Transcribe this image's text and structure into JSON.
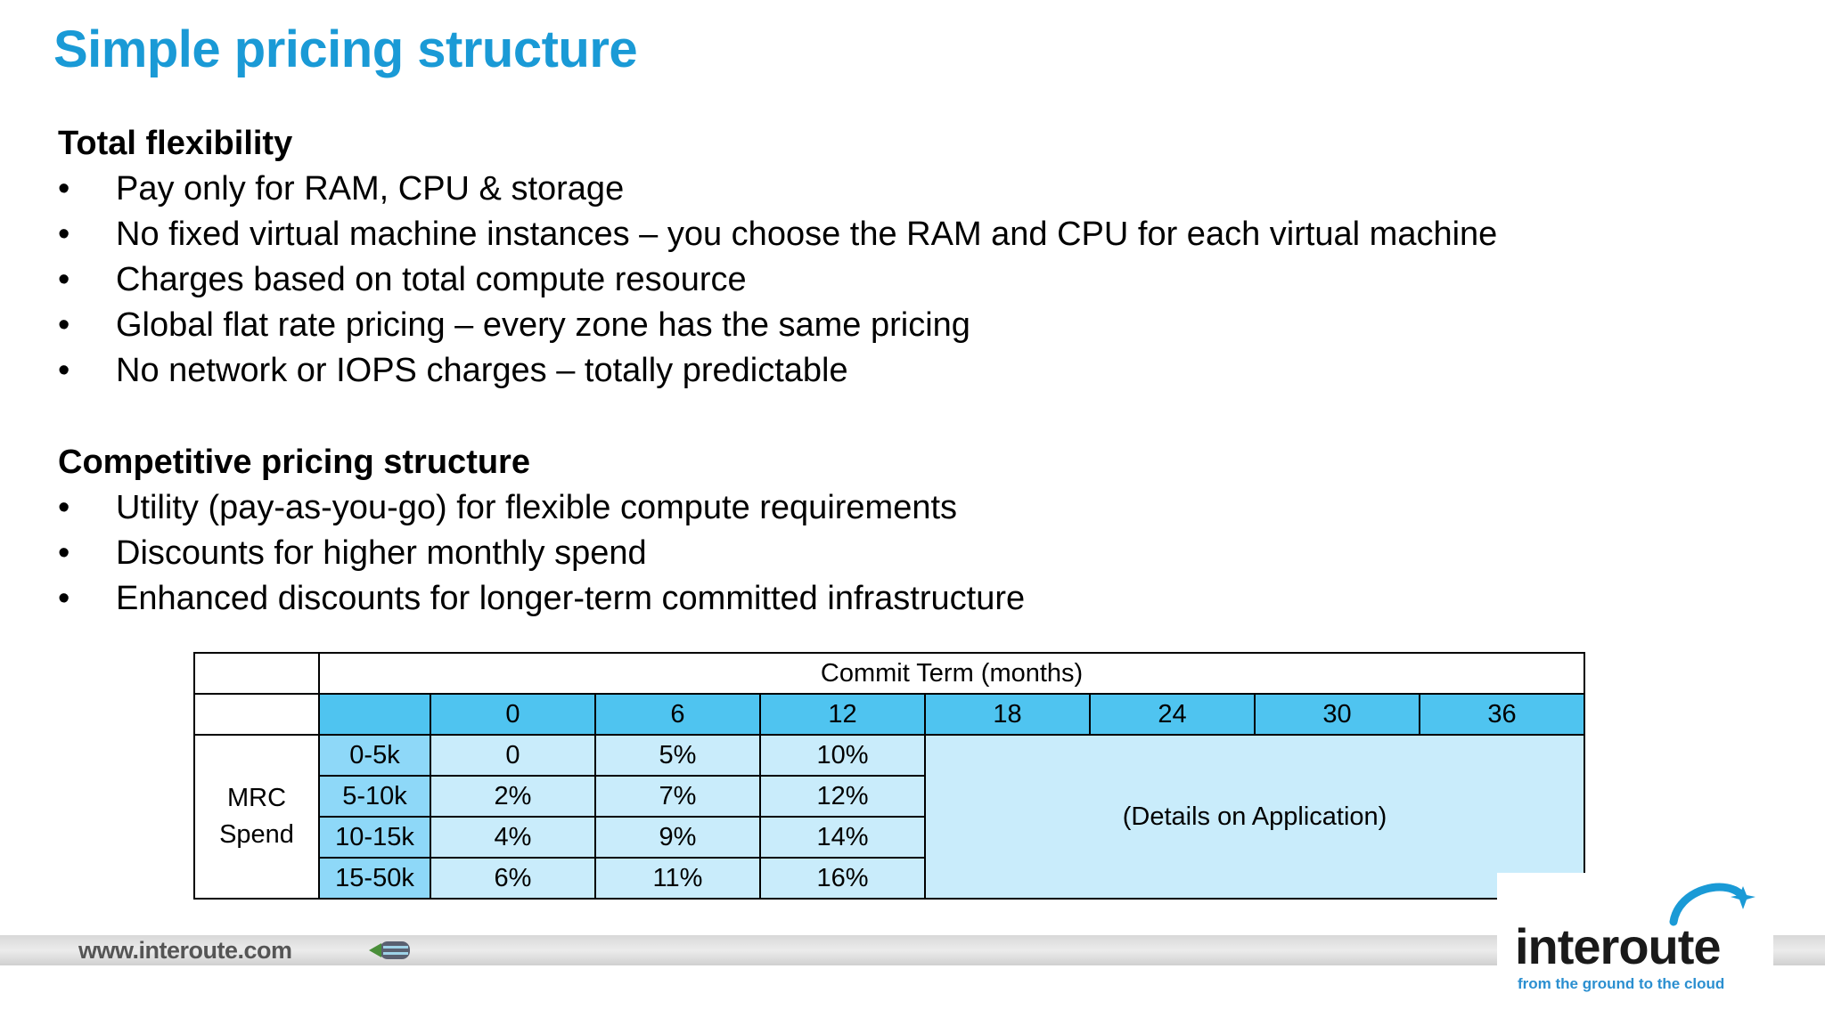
{
  "title": "Simple pricing structure",
  "section1": {
    "heading": "Total flexibility",
    "items": [
      "Pay only for RAM, CPU & storage",
      "No fixed virtual machine instances – you choose the RAM and CPU for each virtual machine",
      "Charges based on total compute resource",
      "Global flat rate pricing – every zone has the same pricing",
      "No network or IOPS charges – totally predictable"
    ]
  },
  "section2": {
    "heading": "Competitive pricing structure",
    "items": [
      "Utility (pay-as-you-go) for flexible compute requirements",
      "Discounts for higher monthly spend",
      "Enhanced discounts for longer-term committed infrastructure"
    ]
  },
  "bullet_char": "•",
  "table": {
    "commit_header": "Commit Term (months)",
    "terms": [
      "0",
      "6",
      "12",
      "18",
      "24",
      "30",
      "36"
    ],
    "row_group_label_line1": "MRC",
    "row_group_label_line2": "Spend",
    "rows": [
      {
        "band": "0-5k",
        "values": [
          "0",
          "5%",
          "10%"
        ]
      },
      {
        "band": "5-10k",
        "values": [
          "2%",
          "7%",
          "12%"
        ]
      },
      {
        "band": "10-15k",
        "values": [
          "4%",
          "9%",
          "14%"
        ]
      },
      {
        "band": "15-50k",
        "values": [
          "6%",
          "11%",
          "16%"
        ]
      }
    ],
    "details_note": "(Details on Application)"
  },
  "footer": {
    "url": "www.interoute.com",
    "arrow_icon": "arrow-left-icon"
  },
  "logo": {
    "wordmark": "interoute",
    "tagline": "from the ground to the cloud"
  },
  "colors": {
    "title": "#1a9ad6",
    "header_cell": "#4fc4f0",
    "band_cell": "#8ed8f8",
    "value_cell": "#c9ecfb",
    "tagline": "#2b8fd0"
  }
}
